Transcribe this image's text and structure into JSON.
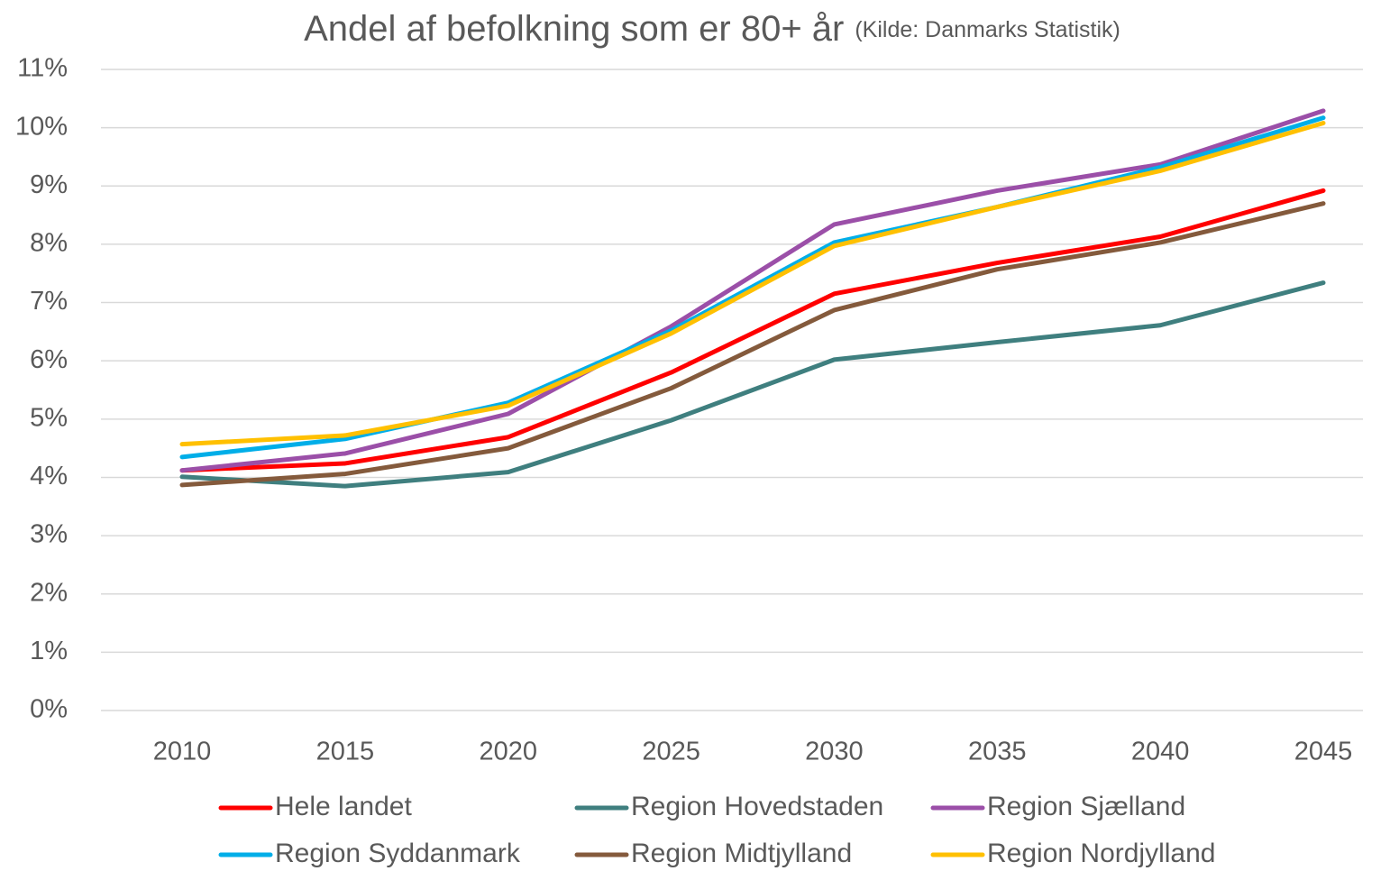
{
  "chart_data": {
    "type": "line",
    "title": "Andel af befolkning som er 80+ år",
    "subtitle": "(Kilde: Danmarks Statistik)",
    "categories": [
      "2010",
      "2015",
      "2020",
      "2025",
      "2030",
      "2035",
      "2040",
      "2045"
    ],
    "series": [
      {
        "name": "Hele landet",
        "color": "#ff0000",
        "values": [
          4.12,
          4.24,
          4.69,
          5.8,
          7.15,
          7.68,
          8.13,
          8.92
        ]
      },
      {
        "name": "Region Hovedstaden",
        "color": "#3f7f7f",
        "values": [
          4.01,
          3.85,
          4.09,
          4.98,
          6.02,
          6.32,
          6.61,
          7.34
        ]
      },
      {
        "name": "Region Sjælland",
        "color": "#9b4fa8",
        "values": [
          4.12,
          4.41,
          5.09,
          6.59,
          8.34,
          8.92,
          9.37,
          10.29
        ]
      },
      {
        "name": "Region Syddanmark",
        "color": "#00aee8",
        "values": [
          4.35,
          4.66,
          5.28,
          6.52,
          8.03,
          8.64,
          9.32,
          10.17
        ]
      },
      {
        "name": "Region Midtjylland",
        "color": "#845a3c",
        "values": [
          3.87,
          4.06,
          4.5,
          5.53,
          6.87,
          7.57,
          8.03,
          8.7
        ]
      },
      {
        "name": "Region Nordjylland",
        "color": "#ffc000",
        "values": [
          4.57,
          4.72,
          5.23,
          6.47,
          7.97,
          8.64,
          9.26,
          10.08
        ]
      }
    ],
    "ylim": [
      0,
      11
    ],
    "yticks": [
      {
        "value": 0,
        "label": "0%"
      },
      {
        "value": 1,
        "label": "1%"
      },
      {
        "value": 2,
        "label": "2%"
      },
      {
        "value": 3,
        "label": "3%"
      },
      {
        "value": 4,
        "label": "4%"
      },
      {
        "value": 5,
        "label": "5%"
      },
      {
        "value": 6,
        "label": "6%"
      },
      {
        "value": 7,
        "label": "7%"
      },
      {
        "value": 8,
        "label": "8%"
      },
      {
        "value": 9,
        "label": "9%"
      },
      {
        "value": 10,
        "label": "10%"
      },
      {
        "value": 11,
        "label": "11%"
      }
    ],
    "grid": true,
    "legend": "bottom"
  }
}
